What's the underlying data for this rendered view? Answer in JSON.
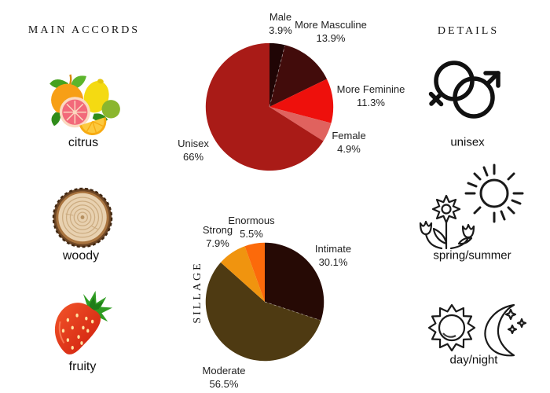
{
  "main_accords": {
    "header": "MAIN ACCORDS",
    "items": [
      {
        "label": "citrus",
        "icon": "citrus-fruits-icon"
      },
      {
        "label": "woody",
        "icon": "wood-slice-icon"
      },
      {
        "label": "fruity",
        "icon": "strawberry-icon"
      }
    ]
  },
  "details": {
    "header": "DETAILS",
    "items": [
      {
        "label": "unisex",
        "icon": "gender-unisex-icon"
      },
      {
        "label": "spring/summer",
        "icon": "flowers-and-sun-icon"
      },
      {
        "label": "day/night",
        "icon": "sun-and-moon-icon"
      }
    ]
  },
  "chart_data": [
    {
      "id": "gender",
      "type": "pie",
      "title": "",
      "legend_position": "around-labels",
      "start_angle_deg": 0,
      "direction": "clockwise",
      "dashed_boundaries": [
        0
      ],
      "slices": [
        {
          "label": "Male",
          "value": 3.9,
          "pct": "3.9%",
          "color": "#200505"
        },
        {
          "label": "More Masculine",
          "value": 13.9,
          "pct": "13.9%",
          "color": "#420c0b"
        },
        {
          "label": "More Feminine",
          "value": 11.3,
          "pct": "11.3%",
          "color": "#ee100c"
        },
        {
          "label": "Female",
          "value": 4.9,
          "pct": "4.9%",
          "color": "#e0625e"
        },
        {
          "label": "Unisex",
          "value": 66,
          "pct": "66%",
          "color": "#a91b17"
        }
      ]
    },
    {
      "id": "sillage",
      "type": "pie",
      "axis_label": "SILLAGE",
      "legend_position": "around-labels",
      "start_angle_deg": 0,
      "direction": "clockwise",
      "dashed_boundaries": [
        0
      ],
      "slices": [
        {
          "label": "Intimate",
          "value": 30.1,
          "pct": "30.1%",
          "color": "#260a05"
        },
        {
          "label": "Moderate",
          "value": 56.5,
          "pct": "56.5%",
          "color": "#4e3a12"
        },
        {
          "label": "Strong",
          "value": 7.9,
          "pct": "7.9%",
          "color": "#f0940f"
        },
        {
          "label": "Enormous",
          "value": 5.5,
          "pct": "5.5%",
          "color": "#fc6a0a"
        }
      ]
    }
  ]
}
